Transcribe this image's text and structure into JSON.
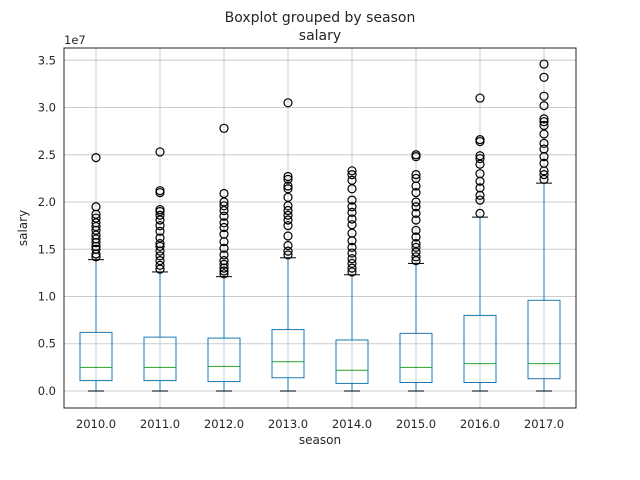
{
  "chart_data": {
    "type": "boxplot",
    "title": "Boxplot grouped by season",
    "subtitle": "salary",
    "xlabel": "season",
    "ylabel": "salary",
    "y_offset_label": "1e7",
    "y_scale": 10000000,
    "ylim": [
      -1800000,
      36300000
    ],
    "yticks": [
      0,
      5000000,
      10000000,
      15000000,
      20000000,
      25000000,
      30000000,
      35000000
    ],
    "ytick_labels": [
      "0.0",
      "0.5",
      "1.0",
      "1.5",
      "2.0",
      "2.5",
      "3.0",
      "3.5"
    ],
    "grid": true,
    "colors": {
      "box": "#1f77b4",
      "median": "#2ca02c",
      "whisker": "#1f77b4",
      "cap": "#000000",
      "flier": "#000000",
      "grid": "#cccccc",
      "frame": "#262626"
    },
    "categories": [
      "2010.0",
      "2011.0",
      "2012.0",
      "2013.0",
      "2014.0",
      "2015.0",
      "2016.0",
      "2017.0"
    ],
    "boxes": [
      {
        "whislo": 0,
        "q1": 1100000,
        "median": 2500000,
        "q3": 6200000,
        "whishi": 13900000,
        "fliers": [
          14200000,
          14500000,
          15000000,
          15300000,
          15700000,
          16100000,
          16500000,
          17000000,
          17400000,
          17800000,
          18300000,
          18700000,
          19500000,
          24700000
        ]
      },
      {
        "whislo": 0,
        "q1": 1100000,
        "median": 2500000,
        "q3": 5700000,
        "whishi": 12600000,
        "fliers": [
          12900000,
          13300000,
          13800000,
          14300000,
          14800000,
          15300000,
          15600000,
          16200000,
          16900000,
          17500000,
          18100000,
          18600000,
          19000000,
          19200000,
          21000000,
          21200000,
          25300000
        ]
      },
      {
        "whislo": 0,
        "q1": 1000000,
        "median": 2600000,
        "q3": 5600000,
        "whishi": 12100000,
        "fliers": [
          12400000,
          12700000,
          13000000,
          13400000,
          13800000,
          14400000,
          15100000,
          15800000,
          16600000,
          17300000,
          17800000,
          18500000,
          19100000,
          19600000,
          20000000,
          20900000,
          27800000
        ]
      },
      {
        "whislo": 0,
        "q1": 1400000,
        "median": 3100000,
        "q3": 6500000,
        "whishi": 14100000,
        "fliers": [
          14400000,
          14800000,
          15400000,
          16400000,
          17500000,
          18100000,
          18600000,
          19100000,
          19600000,
          20500000,
          21400000,
          21700000,
          22400000,
          22700000,
          30500000
        ]
      },
      {
        "whislo": 0,
        "q1": 800000,
        "median": 2200000,
        "q3": 5400000,
        "whishi": 12300000,
        "fliers": [
          12600000,
          13000000,
          13500000,
          14000000,
          14600000,
          15200000,
          15900000,
          16700000,
          17600000,
          18200000,
          18900000,
          19500000,
          20200000,
          21400000,
          22300000,
          22900000,
          23300000
        ]
      },
      {
        "whislo": 0,
        "q1": 900000,
        "median": 2500000,
        "q3": 6100000,
        "whishi": 13500000,
        "fliers": [
          13800000,
          14200000,
          14700000,
          15200000,
          15600000,
          16300000,
          17000000,
          18100000,
          18800000,
          19500000,
          20000000,
          21000000,
          21700000,
          22500000,
          22900000,
          24800000,
          25000000
        ]
      },
      {
        "whislo": 0,
        "q1": 900000,
        "median": 2900000,
        "q3": 8000000,
        "whishi": 18400000,
        "fliers": [
          18800000,
          20200000,
          20700000,
          21500000,
          22200000,
          23000000,
          24000000,
          24600000,
          24900000,
          26400000,
          26600000,
          31000000
        ]
      },
      {
        "whislo": 0,
        "q1": 1300000,
        "median": 2900000,
        "q3": 9600000,
        "whishi": 22000000,
        "fliers": [
          22400000,
          22900000,
          23300000,
          24100000,
          24800000,
          25600000,
          26200000,
          27200000,
          28100000,
          28500000,
          28800000,
          30200000,
          31200000,
          33200000,
          34600000
        ]
      }
    ]
  }
}
